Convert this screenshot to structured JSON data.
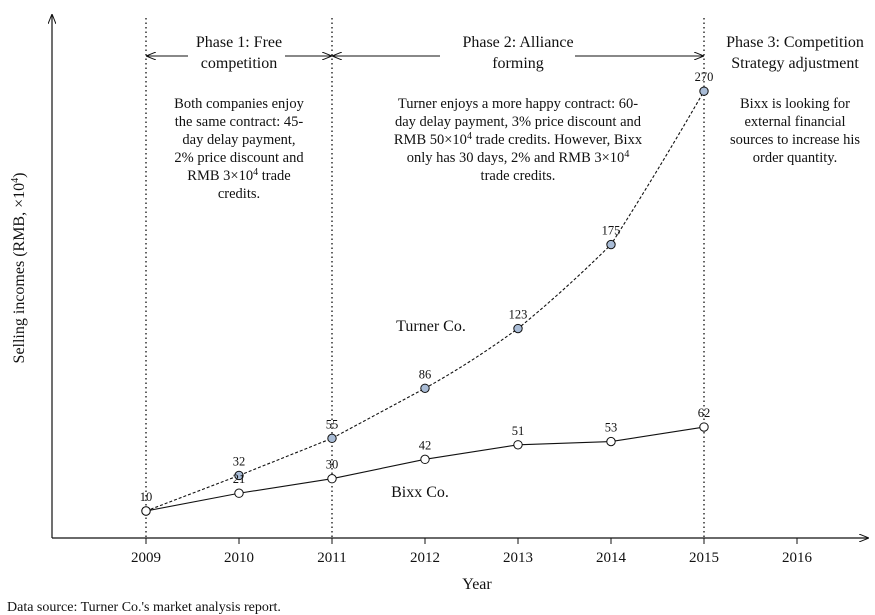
{
  "chart_data": {
    "type": "line",
    "x": [
      2009,
      2010,
      2011,
      2012,
      2013,
      2014,
      2015
    ],
    "x_ticks": [
      "2009",
      "2010",
      "2011",
      "2012",
      "2013",
      "2014",
      "2015",
      "2016"
    ],
    "xlabel": "Year",
    "ylabel": "Selling incomes (RMB, ×10",
    "ylabel_sup": "4",
    "ylabel_close": ")",
    "series": [
      {
        "name": "Turner Co.",
        "values": [
          10,
          32,
          55,
          86,
          123,
          175,
          270
        ],
        "style": "dashed",
        "marker_fill": "#a9bcd6"
      },
      {
        "name": "Bixx Co.",
        "values": [
          10,
          21,
          30,
          42,
          51,
          53,
          62
        ],
        "style": "solid",
        "marker_fill": "#ffffff"
      }
    ],
    "phase_boundaries": [
      2009,
      2011,
      2015
    ],
    "phases": [
      {
        "title_lines": [
          "Phase 1: Free",
          "competition"
        ],
        "description_lines": [
          [
            "Both companies enjoy"
          ],
          [
            "the same contract: 45-"
          ],
          [
            "day delay payment,"
          ],
          [
            "2% price discount and"
          ],
          [
            "RMB 3×10",
            "4",
            " trade"
          ],
          [
            "credits."
          ]
        ]
      },
      {
        "title_lines": [
          "Phase 2: Alliance",
          "forming"
        ],
        "description_lines": [
          [
            "Turner enjoys a more happy contract: 60-"
          ],
          [
            "day delay payment, 3% price discount and"
          ],
          [
            "RMB 50×10",
            "4",
            " trade credits. However, Bixx"
          ],
          [
            "only has 30 days, 2% and  RMB 3×10",
            "4"
          ],
          [
            "trade credits."
          ]
        ]
      },
      {
        "title_lines": [
          "Phase 3: Competition",
          "Strategy adjustment"
        ],
        "description_lines": [
          [
            "Bixx is looking for"
          ],
          [
            "external financial"
          ],
          [
            "sources to increase his"
          ],
          [
            "order quantity."
          ]
        ]
      }
    ],
    "source_note": "Data source: Turner Co.'s market analysis report.",
    "line_color": "#111111",
    "grid": false
  }
}
